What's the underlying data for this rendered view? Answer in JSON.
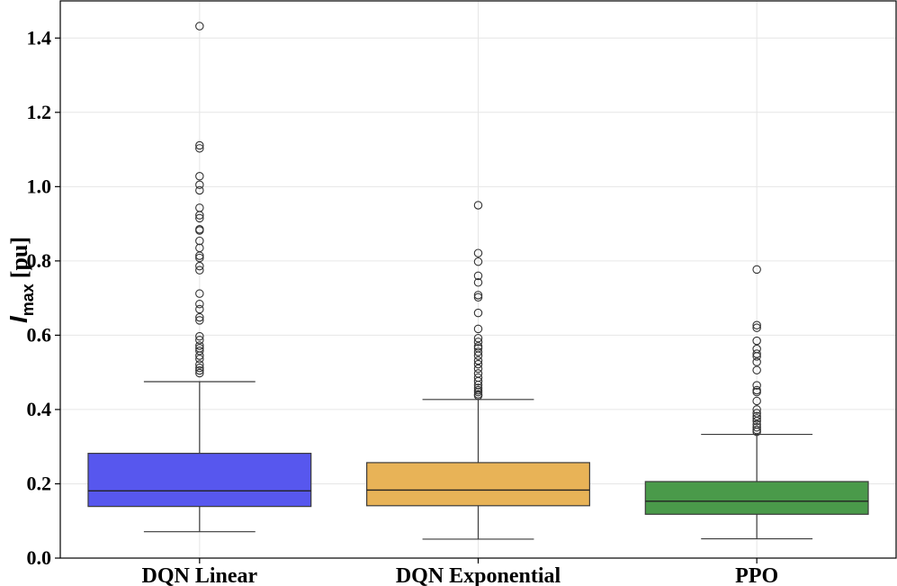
{
  "chart_data": {
    "type": "box",
    "ylabel": "I_max [pu]",
    "ylabel_parts": {
      "symbol": "I",
      "subscript": "max",
      "unit": "[pu]"
    },
    "ylim": [
      0.0,
      1.5
    ],
    "yticks": [
      0.0,
      0.2,
      0.4,
      0.6,
      0.8,
      1.0,
      1.2,
      1.4
    ],
    "ytick_labels": [
      "0.0",
      "0.2",
      "0.4",
      "0.6",
      "0.8",
      "1.0",
      "1.2",
      "1.4"
    ],
    "grid": true,
    "categories": [
      "DQN Linear",
      "DQN Exponential",
      "PPO"
    ],
    "series": [
      {
        "category": "DQN Linear",
        "color": "#5757ee",
        "q1": 0.139,
        "median": 0.181,
        "q3": 0.282,
        "whisker_low": 0.071,
        "whisker_high": 0.475,
        "outliers": [
          1.432,
          1.111,
          1.103,
          1.028,
          1.005,
          0.99,
          0.943,
          0.923,
          0.915,
          0.885,
          0.882,
          0.854,
          0.835,
          0.814,
          0.808,
          0.786,
          0.775,
          0.712,
          0.684,
          0.67,
          0.648,
          0.64,
          0.597,
          0.587,
          0.572,
          0.565,
          0.558,
          0.545,
          0.536,
          0.521,
          0.512,
          0.505,
          0.498
        ]
      },
      {
        "category": "DQN Exponential",
        "color": "#e8b357",
        "q1": 0.141,
        "median": 0.183,
        "q3": 0.257,
        "whisker_low": 0.051,
        "whisker_high": 0.427,
        "outliers": [
          0.95,
          0.821,
          0.798,
          0.76,
          0.742,
          0.708,
          0.702,
          0.66,
          0.617,
          0.592,
          0.582,
          0.57,
          0.565,
          0.555,
          0.545,
          0.532,
          0.522,
          0.51,
          0.497,
          0.486,
          0.476,
          0.466,
          0.458,
          0.452,
          0.447,
          0.441,
          0.437
        ]
      },
      {
        "category": "PPO",
        "color": "#4a9a4a",
        "q1": 0.118,
        "median": 0.153,
        "q3": 0.206,
        "whisker_low": 0.052,
        "whisker_high": 0.333,
        "outliers": [
          0.777,
          0.627,
          0.62,
          0.585,
          0.563,
          0.55,
          0.543,
          0.528,
          0.506,
          0.465,
          0.452,
          0.447,
          0.423,
          0.4,
          0.39,
          0.382,
          0.376,
          0.369,
          0.36,
          0.352,
          0.345,
          0.34
        ]
      }
    ]
  }
}
